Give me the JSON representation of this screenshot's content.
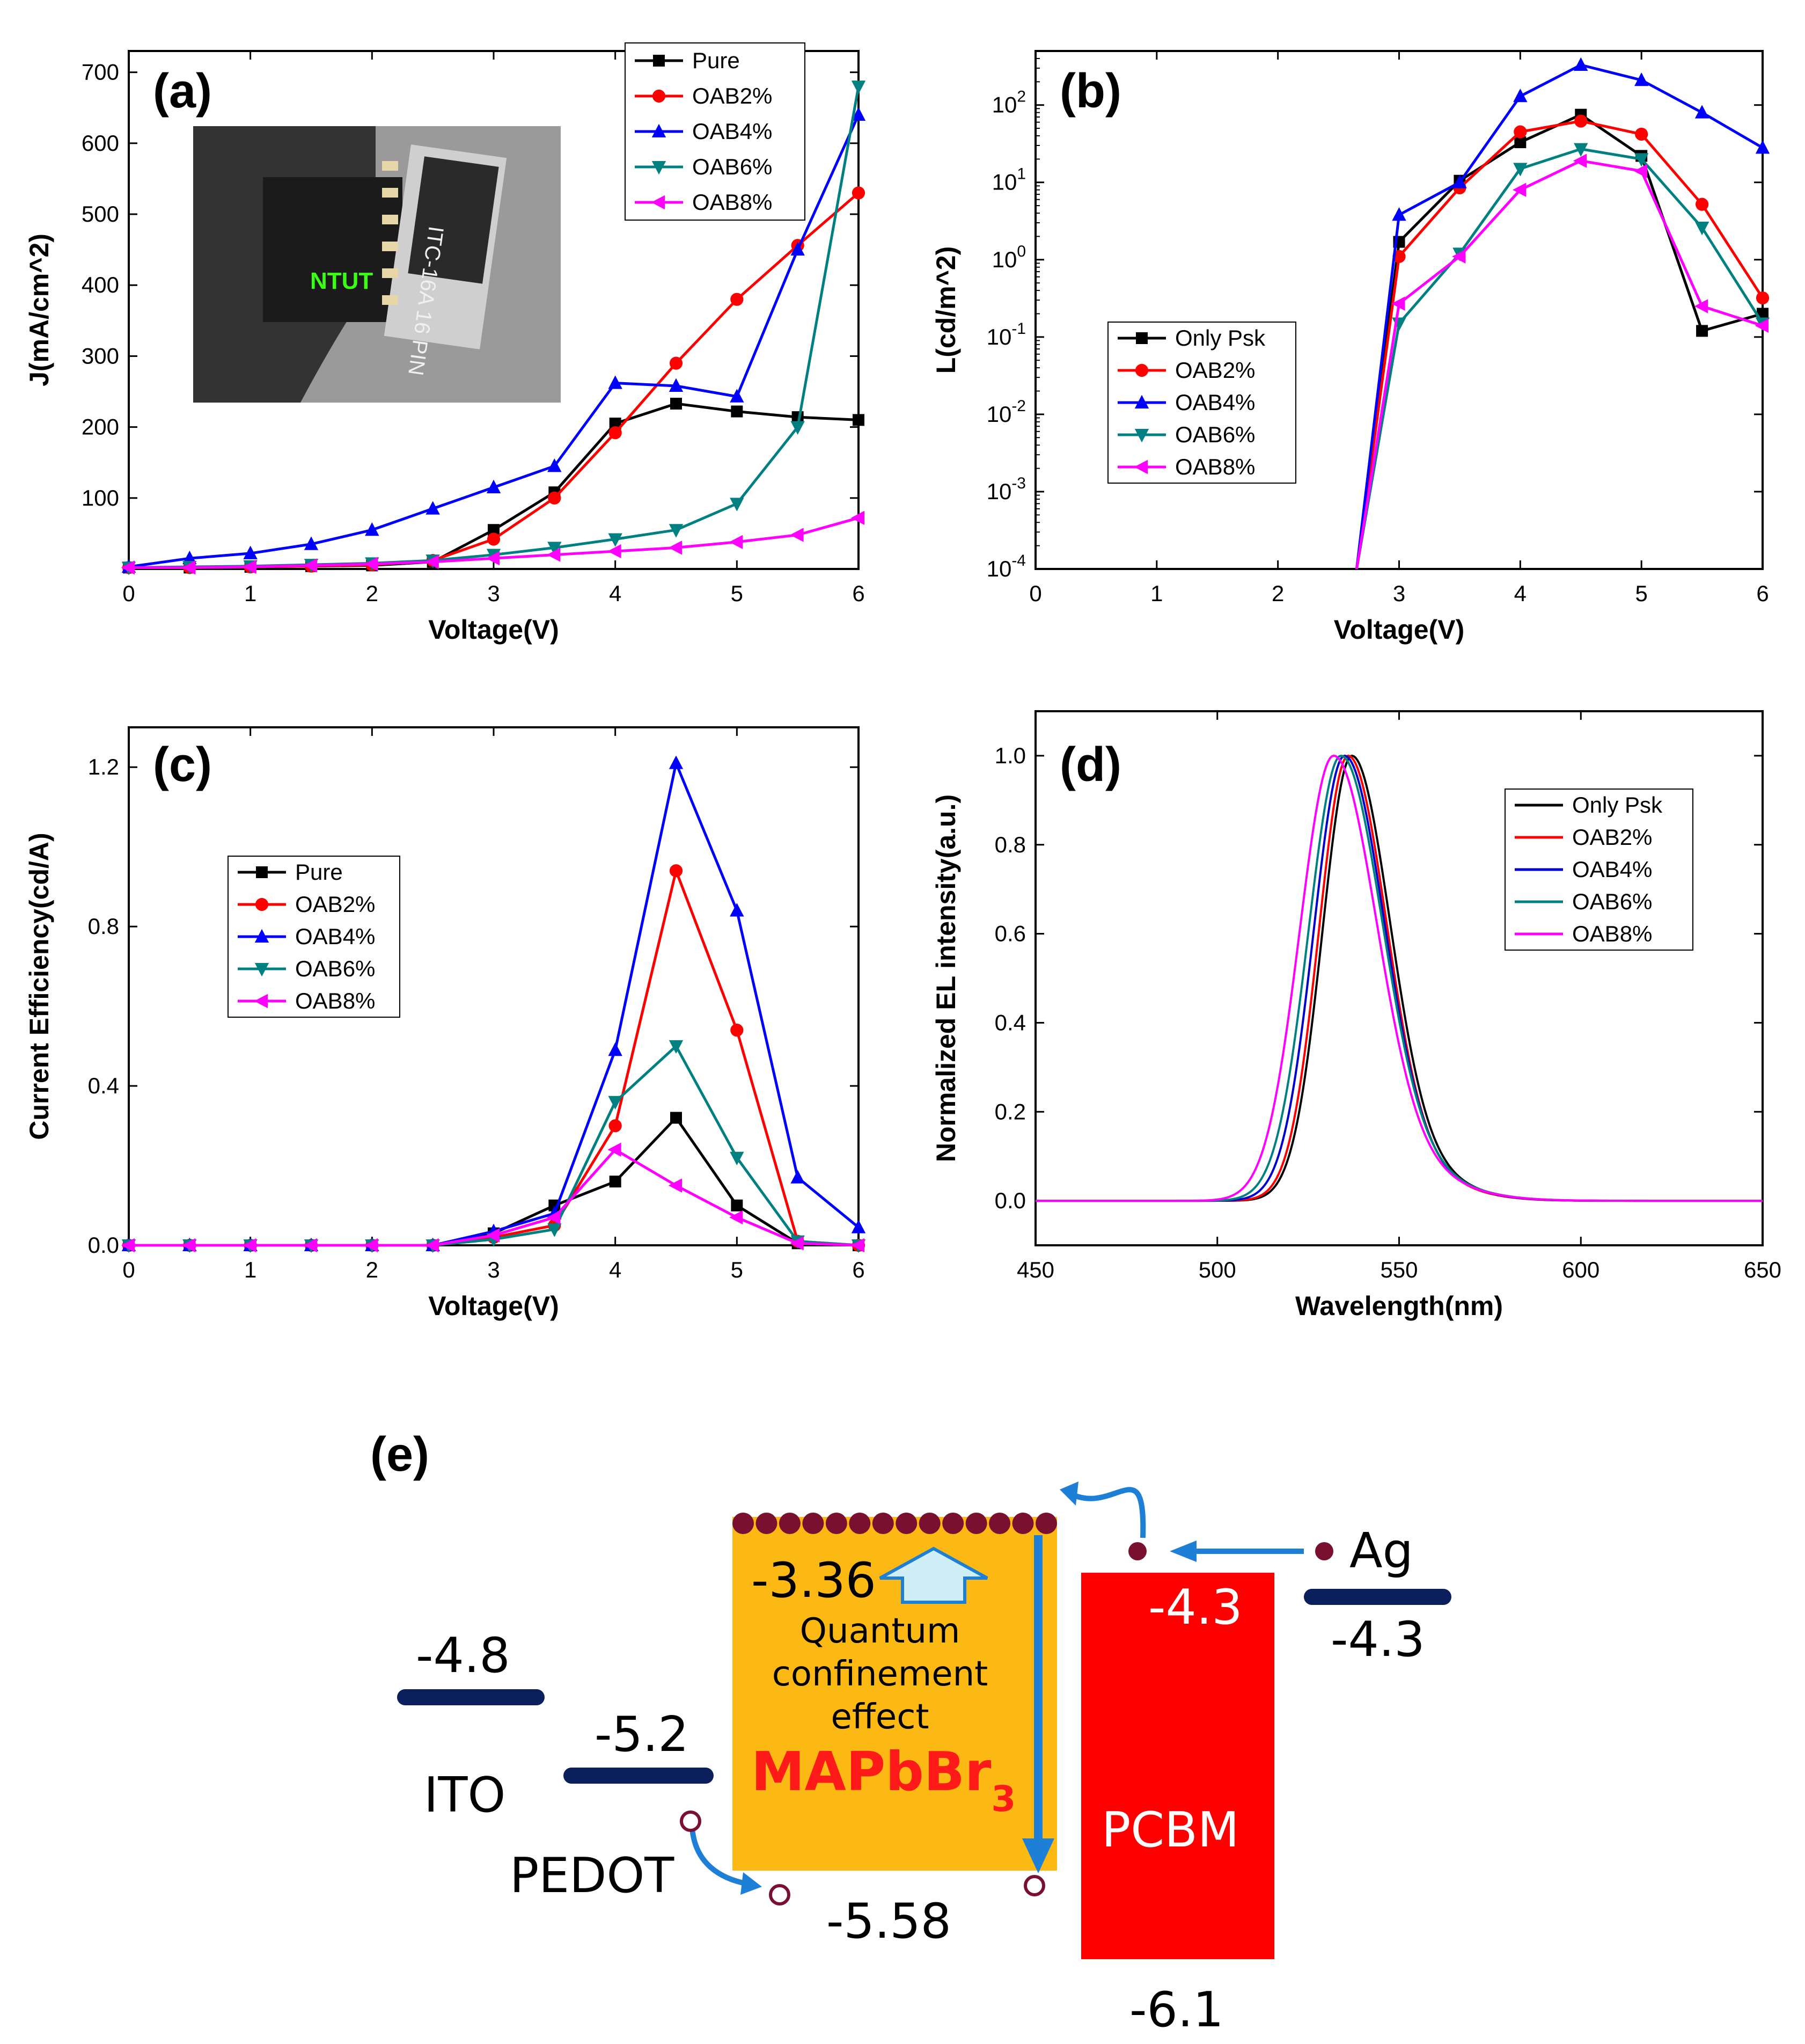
{
  "chart_data": [
    {
      "panel": "(a)",
      "type": "line",
      "xlabel": "Voltage(V)",
      "ylabel": "J(mA/cm^2)",
      "xlim": [
        0,
        6
      ],
      "ylim": [
        0,
        730
      ],
      "xticks": [
        0,
        1,
        2,
        3,
        4,
        5,
        6
      ],
      "yticks": [
        100,
        200,
        300,
        400,
        500,
        600,
        700
      ],
      "legend_position": "top-right",
      "x": [
        0,
        0.5,
        1,
        1.5,
        2,
        2.5,
        3,
        3.5,
        4,
        4.5,
        5,
        5.5,
        6
      ],
      "series": [
        {
          "name": "Pure",
          "color": "#000000",
          "marker": "square",
          "values": [
            2,
            2,
            3,
            4,
            5,
            10,
            55,
            108,
            205,
            233,
            222,
            214,
            210
          ]
        },
        {
          "name": "OAB2%",
          "color": "#ff0000",
          "marker": "circle",
          "values": [
            2,
            2,
            3,
            4,
            6,
            12,
            42,
            100,
            192,
            290,
            380,
            456,
            530
          ]
        },
        {
          "name": "OAB4%",
          "color": "#0000ff",
          "marker": "triangle-up",
          "values": [
            3,
            15,
            22,
            35,
            55,
            85,
            115,
            145,
            262,
            258,
            243,
            450,
            640
          ]
        },
        {
          "name": "OAB6%",
          "color": "#008080",
          "marker": "triangle-down",
          "values": [
            2,
            3,
            4,
            6,
            8,
            12,
            20,
            30,
            42,
            55,
            92,
            200,
            680
          ]
        },
        {
          "name": "OAB8%",
          "color": "#ff00ff",
          "marker": "triangle-left",
          "values": [
            2,
            2,
            3,
            5,
            7,
            10,
            15,
            20,
            25,
            30,
            38,
            48,
            72
          ]
        }
      ],
      "inset": {
        "description": "photo of glowing device",
        "text": "NTUT",
        "chip_text": "ITC-16A 16 PIN"
      }
    },
    {
      "panel": "(b)",
      "type": "line",
      "xlabel": "Voltage(V)",
      "ylabel": "L(cd/m^2)",
      "yscale": "log",
      "xlim": [
        0,
        6
      ],
      "ylim": [
        0.0001,
        500
      ],
      "xticks": [
        0,
        1,
        2,
        3,
        4,
        5,
        6
      ],
      "yticks": [
        {
          "base": "10",
          "exp": "-4",
          "value": 0.0001
        },
        {
          "base": "10",
          "exp": "-3",
          "value": 0.001
        },
        {
          "base": "10",
          "exp": "-2",
          "value": 0.01
        },
        {
          "base": "10",
          "exp": "-1",
          "value": 0.1
        },
        {
          "base": "10",
          "exp": "0",
          "value": 1
        },
        {
          "base": "10",
          "exp": "1",
          "value": 10
        },
        {
          "base": "10",
          "exp": "2",
          "value": 100
        }
      ],
      "legend_position": "middle-left",
      "x": [
        2.65,
        3,
        3.5,
        4,
        4.5,
        5,
        5.5,
        6
      ],
      "series": [
        {
          "name": "Only Psk",
          "color": "#000000",
          "marker": "square",
          "values": [
            0.0001,
            1.7,
            10.5,
            33,
            75,
            22,
            0.12,
            0.2
          ]
        },
        {
          "name": "OAB2%",
          "color": "#ff0000",
          "marker": "circle",
          "values": [
            0.0001,
            1.1,
            8.5,
            45,
            62,
            42,
            5.2,
            0.32
          ]
        },
        {
          "name": "OAB4%",
          "color": "#0000ff",
          "marker": "triangle-up",
          "values": [
            0.0001,
            3.8,
            10,
            130,
            330,
            210,
            80,
            28
          ]
        },
        {
          "name": "OAB6%",
          "color": "#008080",
          "marker": "triangle-down",
          "values": [
            0.0001,
            0.15,
            1.2,
            15,
            27,
            20,
            2.6,
            0.15
          ]
        },
        {
          "name": "OAB8%",
          "color": "#ff00ff",
          "marker": "triangle-left",
          "values": [
            0.0001,
            0.27,
            1.1,
            8,
            19,
            14,
            0.25,
            0.14
          ]
        }
      ]
    },
    {
      "panel": "(c)",
      "type": "line",
      "xlabel": "Voltage(V)",
      "ylabel": "Current Efficiency(cd/A)",
      "xlim": [
        0,
        6
      ],
      "ylim": [
        0,
        1.3
      ],
      "xticks": [
        0,
        1,
        2,
        3,
        4,
        5,
        6
      ],
      "yticks": [
        "0.0",
        "0.4",
        "0.8",
        "1.2"
      ],
      "legend_position": "middle-left",
      "x": [
        0,
        0.5,
        1,
        1.5,
        2,
        2.5,
        3,
        3.5,
        4,
        4.5,
        5,
        5.5,
        6
      ],
      "series": [
        {
          "name": "Pure",
          "color": "#000000",
          "marker": "square",
          "values": [
            0,
            0,
            0,
            0,
            0,
            0,
            0.03,
            0.1,
            0.16,
            0.32,
            0.1,
            0.005,
            0
          ]
        },
        {
          "name": "OAB2%",
          "color": "#ff0000",
          "marker": "circle",
          "values": [
            0,
            0,
            0,
            0,
            0,
            0,
            0.02,
            0.05,
            0.3,
            0.94,
            0.54,
            0.01,
            0
          ]
        },
        {
          "name": "OAB4%",
          "color": "#0000ff",
          "marker": "triangle-up",
          "values": [
            0,
            0,
            0,
            0,
            0,
            0,
            0.035,
            0.08,
            0.49,
            1.21,
            0.84,
            0.17,
            0.045
          ]
        },
        {
          "name": "OAB6%",
          "color": "#008080",
          "marker": "triangle-down",
          "values": [
            0,
            0,
            0,
            0,
            0,
            0,
            0.015,
            0.04,
            0.36,
            0.5,
            0.22,
            0.01,
            0
          ]
        },
        {
          "name": "OAB8%",
          "color": "#ff00ff",
          "marker": "triangle-left",
          "values": [
            0,
            0,
            0,
            0,
            0,
            0,
            0.025,
            0.07,
            0.24,
            0.15,
            0.07,
            0.005,
            0
          ]
        }
      ]
    },
    {
      "panel": "(d)",
      "type": "line",
      "xlabel": "Wavelength(nm)",
      "ylabel": "Normalized EL intensity(a.u.)",
      "xlim": [
        450,
        650
      ],
      "ylim": [
        -0.1,
        1.1
      ],
      "xticks": [
        450,
        500,
        550,
        600,
        650
      ],
      "yticks": [
        "0.0",
        "0.2",
        "0.4",
        "0.6",
        "0.8",
        "1.0"
      ],
      "legend_position": "top-right",
      "peak_shape": "gaussian",
      "series": [
        {
          "name": "Only Psk",
          "color": "#000000",
          "peak_nm": 537,
          "fwhm_left_nm": 19,
          "fwhm_right_nm": 24
        },
        {
          "name": "OAB2%",
          "color": "#ff0000",
          "peak_nm": 536,
          "fwhm_left_nm": 19,
          "fwhm_right_nm": 24
        },
        {
          "name": "OAB4%",
          "color": "#0000cc",
          "peak_nm": 535,
          "fwhm_left_nm": 20,
          "fwhm_right_nm": 25
        },
        {
          "name": "OAB6%",
          "color": "#008080",
          "peak_nm": 534,
          "fwhm_left_nm": 21,
          "fwhm_right_nm": 26
        },
        {
          "name": "OAB8%",
          "color": "#ff00ff",
          "peak_nm": 532,
          "fwhm_left_nm": 22,
          "fwhm_right_nm": 27
        }
      ]
    }
  ],
  "energy_diagram": {
    "label": "(e)",
    "layers": [
      {
        "name": "ITO",
        "level": "-4.8"
      },
      {
        "name": "PEDOT",
        "level": "-5.2"
      },
      {
        "name": "MAPbBr",
        "subscript": "3",
        "lumo": "-3.36",
        "homo": "-5.58",
        "note_lines": [
          "Quantum",
          "confinement",
          "effect"
        ]
      },
      {
        "name": "PCBM",
        "lumo": "-4.3",
        "homo": "-6.1"
      },
      {
        "name": "Ag",
        "level": "-4.3"
      }
    ],
    "colors": {
      "perovskite": "#fdb913",
      "pcbm": "#ff0000",
      "electrode": "#0a1f5c",
      "arrow": "#1e7fd6",
      "carrier": "#7a1030"
    }
  }
}
